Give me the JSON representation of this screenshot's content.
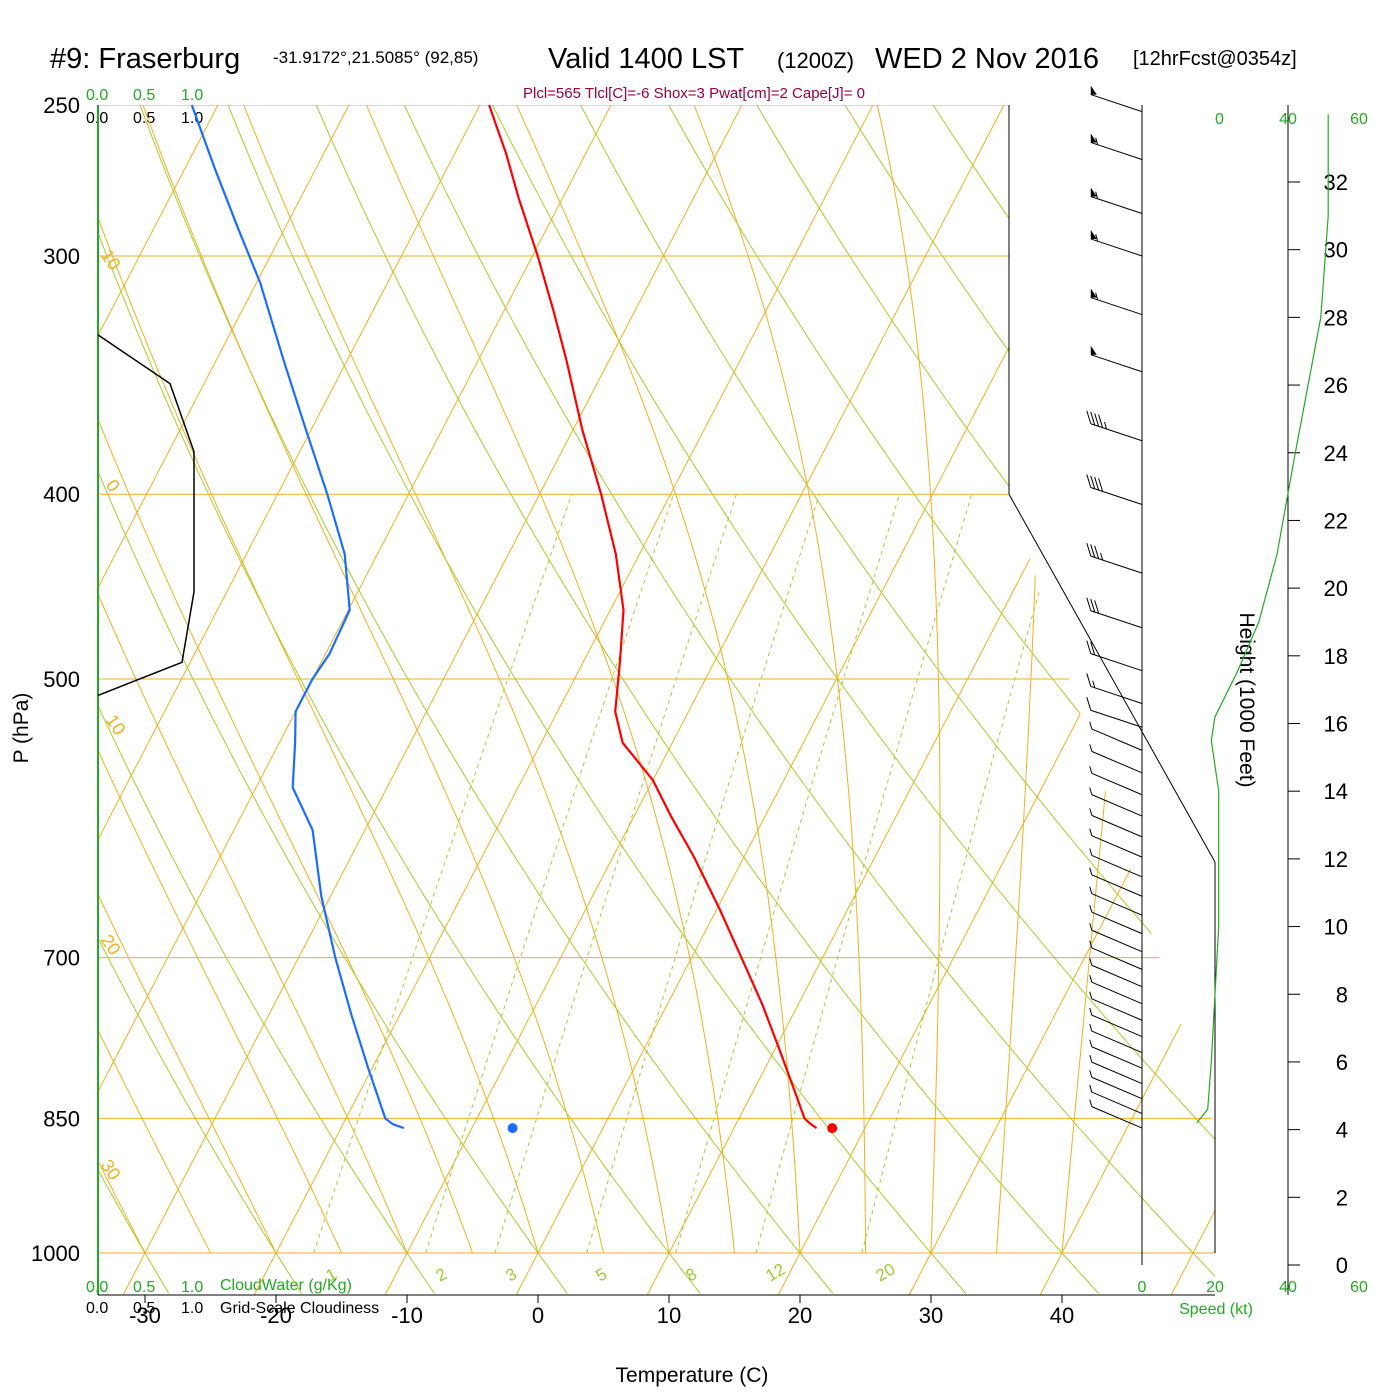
{
  "header": {
    "station": "#9: Fraserburg",
    "coords": "-31.9172°,21.5085° (92,85)",
    "valid": "Valid 1400 LST",
    "utc": "(1200Z)",
    "date": "WED 2 Nov 2016",
    "forecast": "[12hrFcst@0354z]"
  },
  "indices": "Plcl=565 Tlcl[C]=-6 Shox=3 Pwat[cm]=2 Cape[J]= 0",
  "cloud_scale": {
    "top_green": [
      "0.0",
      "0.5",
      "1.0"
    ],
    "top_black": [
      "0.0",
      "0.5",
      "1.0"
    ],
    "bottom_green": [
      "0.0",
      "0.5",
      "1.0"
    ],
    "bottom_black": [
      "0.0",
      "0.5",
      "1.0"
    ],
    "cloudwater_label": "CloudWater (g/Kg)",
    "cloudiness_label": "Grid-Scale Cloudiness"
  },
  "speed_scale": {
    "top": [
      "0",
      "20",
      "40",
      "60"
    ],
    "bottom": [
      "0",
      "20",
      "40",
      "60"
    ],
    "label": "Speed (kt)"
  },
  "chart_data": {
    "type": "line",
    "title": "",
    "xlabel": "Temperature (C)",
    "ylabel": "P (hPa)",
    "y2label": "Height (1000 Feet)",
    "xlim": [
      -34,
      36
    ],
    "ylim": [
      1000,
      250
    ],
    "y_log": true,
    "x_ticks": [
      -30,
      -20,
      -10,
      0,
      10,
      20,
      30,
      40
    ],
    "y_ticks": [
      250,
      300,
      400,
      500,
      700,
      850,
      1000
    ],
    "y2_ticks": [
      0,
      2,
      4,
      6,
      8,
      10,
      12,
      14,
      16,
      18,
      20,
      22,
      24,
      26,
      28,
      30,
      32
    ],
    "isotherm_labels": [
      "10",
      "0",
      "10",
      "20",
      "30"
    ],
    "theta_labels": [
      "0",
      "10",
      "20",
      "30"
    ],
    "mixing_ratio_labels": [
      "1",
      "2",
      "3",
      "5",
      "8",
      "12",
      "20"
    ],
    "series": [
      {
        "name": "",
        "color": "#ff0000",
        "pressure": [
          860,
          855,
          850,
          820,
          780,
          740,
          700,
          660,
          620,
          590,
          565,
          540,
          520,
          490,
          460,
          430,
          400,
          370,
          340,
          320,
          300,
          280,
          265,
          250
        ],
        "temperature": [
          16.3,
          15.6,
          15.0,
          13.0,
          10.2,
          7.2,
          3.8,
          0.2,
          -3.8,
          -7.2,
          -10.0,
          -13.8,
          -15.6,
          -17.2,
          -19.0,
          -21.8,
          -25.3,
          -29.3,
          -33.3,
          -36.3,
          -39.6,
          -43.3,
          -46.1,
          -49.3
        ]
      },
      {
        "name": "",
        "color": "#1a6eff",
        "pressure": [
          860,
          856,
          850,
          800,
          750,
          700,
          650,
          600,
          570,
          540,
          520,
          500,
          485,
          460,
          430,
          400,
          370,
          340,
          310,
          290,
          270,
          250
        ],
        "temperature": [
          -15.2,
          -16.2,
          -17.0,
          -20.3,
          -23.7,
          -27.2,
          -30.7,
          -34.0,
          -37.2,
          -38.8,
          -40.0,
          -40.0,
          -39.7,
          -39.9,
          -42.5,
          -46.2,
          -50.4,
          -54.9,
          -59.7,
          -63.6,
          -67.7,
          -72.0
        ]
      }
    ],
    "surface_points": [
      {
        "color": "#ff0000",
        "pressure": 860,
        "temperature": 17.5
      },
      {
        "color": "#1a6eff",
        "pressure": 860,
        "temperature": -6.9
      }
    ],
    "cloud_profile": {
      "color": "#000000",
      "pressure": [
        510,
        490,
        450,
        400,
        380,
        350,
        330
      ],
      "value": [
        0.0,
        0.7,
        0.8,
        0.8,
        0.8,
        0.6,
        0.0
      ]
    },
    "height_profile_speed": {
      "color": "#22aa22",
      "height_kft": [
        4.2,
        4.6,
        6,
        8,
        10,
        12.5,
        14,
        15.5,
        16.2,
        17.5,
        19,
        21,
        24,
        28,
        31,
        34
      ],
      "speed_kt": [
        15,
        18,
        19,
        20,
        21,
        21,
        21,
        19,
        20,
        26,
        32,
        37,
        42,
        49,
        51,
        51
      ]
    },
    "wind_barbs": {
      "pressure": [
        860,
        845,
        830,
        815,
        800,
        785,
        770,
        755,
        740,
        725,
        710,
        695,
        680,
        665,
        650,
        635,
        620,
        605,
        590,
        575,
        560,
        545,
        530,
        515,
        495,
        470,
        440,
        405,
        375,
        345,
        322,
        300,
        285,
        267,
        252
      ],
      "speed_kt": [
        5,
        5,
        5,
        5,
        5,
        5,
        5,
        5,
        5,
        5,
        5,
        5,
        5,
        5,
        5,
        5,
        5,
        5,
        5,
        5,
        5,
        5,
        10,
        15,
        20,
        30,
        35,
        40,
        45,
        50,
        55,
        55,
        55,
        55,
        50
      ],
      "direction_deg": [
        285,
        285,
        285,
        285,
        285,
        285,
        285,
        285,
        285,
        285,
        285,
        285,
        285,
        285,
        285,
        285,
        285,
        285,
        285,
        285,
        285,
        285,
        280,
        280,
        280,
        280,
        280,
        280,
        280,
        280,
        280,
        280,
        280,
        280,
        280
      ]
    }
  }
}
